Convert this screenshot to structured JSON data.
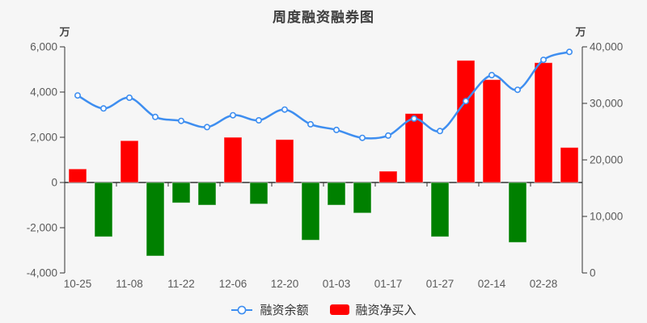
{
  "chart_data": {
    "type": "bar+line",
    "title": "周度融资融券图",
    "background_color": "#f6f6f6",
    "grid": false,
    "legend_position": "bottom-center",
    "categories_visible": [
      "10-25",
      "11-08",
      "11-22",
      "12-06",
      "12-20",
      "01-03",
      "01-17",
      "01-27",
      "02-14",
      "02-28"
    ],
    "x_label_every": 2,
    "n_points": 20,
    "left_axis": {
      "unit": "万",
      "min": -4000,
      "max": 6000,
      "step": 2000
    },
    "right_axis": {
      "unit": "万",
      "min": 0,
      "max": 40000,
      "step": 10000
    },
    "series": [
      {
        "name": "融资余额",
        "type": "line",
        "axis": "right",
        "color": "#3e8ef0",
        "marker": "hollow-circle",
        "values": [
          31400,
          29100,
          31000,
          27600,
          26900,
          25800,
          27900,
          27000,
          28900,
          26300,
          25300,
          23900,
          24300,
          27300,
          25100,
          30400,
          35000,
          32400,
          37700,
          39100
        ]
      },
      {
        "name": "融资净买入",
        "type": "bar",
        "axis": "left",
        "color_positive": "#ff0000",
        "color_negative": "#008000",
        "values": [
          600,
          -2400,
          1850,
          -3250,
          -900,
          -1000,
          2000,
          -950,
          1900,
          -2550,
          -1000,
          -1350,
          500,
          3050,
          -2400,
          5400,
          4550,
          -2650,
          5300,
          1550
        ]
      }
    ]
  }
}
